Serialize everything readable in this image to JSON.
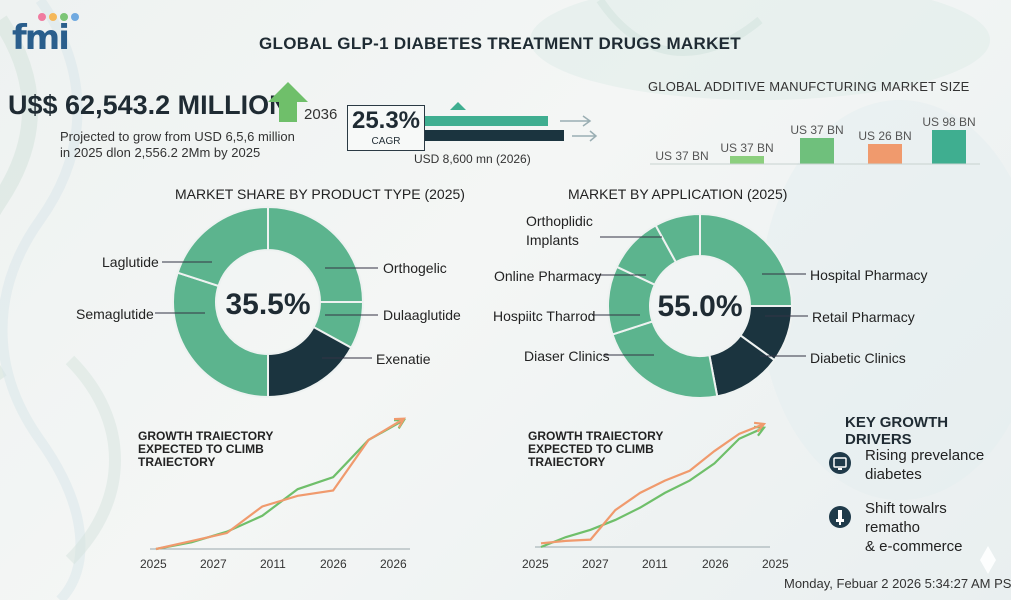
{
  "header": {
    "logo_text": "fmi",
    "title": "GLOBAL GLP-1 DIABETES TREATMENT DRUGS MARKET"
  },
  "headline": {
    "value": "U$$ 62,543.2 MILLION",
    "projection_line1": "Projected to grow from USD 6,5,6 million",
    "projection_line2": "in 2025 dlon 2,556.2 2Mm by 2025",
    "year": "2036",
    "cagr_value": "25.3%",
    "cagr_label": "CAGR",
    "usd_label": "USD 8,600 mn (2026)"
  },
  "colors": {
    "green": "#5cb48e",
    "dark": "#1b343f",
    "light_green": "#8ccf7e",
    "orange": "#f09a6d",
    "teal": "#3fae90",
    "arrow_green": "#6fbf6a"
  },
  "chart_data": [
    {
      "type": "bar",
      "title": "GLOBAL ADDITIVE MANUFCTURING MARKET SIZE",
      "categories": [
        "US 37 BN",
        "US 37 BN",
        "US 37 BN",
        "US 26 BN",
        "US 98 BN"
      ],
      "values": [
        0,
        8,
        26,
        20,
        34
      ],
      "colors": [
        "#8ccf7e",
        "#8ccf7e",
        "#6fc07c",
        "#f09a6d",
        "#3fae90"
      ]
    },
    {
      "type": "pie",
      "title": "MARKET SHARE BY PRODUCT TYPE (2025)",
      "center_label": "35.5%",
      "labels": [
        "Orthogelic",
        "Dulaaglutide",
        "Exenatie",
        "Semaglutide",
        "Laglutide"
      ],
      "values": [
        25,
        8,
        17,
        30,
        20
      ],
      "colors": [
        "#5cb48e",
        "#5cb48e",
        "#1b343f",
        "#5cb48e",
        "#5cb48e"
      ]
    },
    {
      "type": "pie",
      "title": "MARKET BY APPLICATION (2025)",
      "center_label": "55.0%",
      "labels": [
        "Hospital Pharmacy",
        "Retail Pharmacy",
        "Diabetic Clinics",
        "Diaser Clinics",
        "Hospiitc Tharrod",
        "Online Pharmacy",
        "Orthoplidic Implants"
      ],
      "values": [
        25,
        10,
        12,
        23,
        12,
        10,
        8
      ],
      "colors": [
        "#5cb48e",
        "#1b343f",
        "#1b343f",
        "#5cb48e",
        "#5cb48e",
        "#5cb48e",
        "#5cb48e"
      ]
    },
    {
      "type": "line",
      "title": "GROWTH TRAIECTORY EXPECTED TO CLIMB TRAIECTORY",
      "x_ticks": [
        "2025",
        "2027",
        "2011",
        "2026",
        "2026"
      ],
      "ylim": [
        0,
        100
      ],
      "series": [
        {
          "color": "#6fbf6a",
          "values": [
            0,
            5,
            13,
            25,
            45,
            54,
            82,
            97
          ]
        },
        {
          "color": "#f09a6d",
          "values": [
            0,
            6,
            12,
            32,
            40,
            44,
            82,
            98
          ]
        }
      ]
    },
    {
      "type": "line",
      "title": "GROWTH TRAIECTORY EXPECTED TO CLIMB TRAIECTORY",
      "x_ticks": [
        "2025",
        "2027",
        "2011",
        "2026",
        "2025"
      ],
      "ylim": [
        0,
        100
      ],
      "series": [
        {
          "color": "#6fbf6a",
          "values": [
            0,
            8,
            14,
            22,
            32,
            44,
            54,
            68,
            88,
            97
          ]
        },
        {
          "color": "#f09a6d",
          "values": [
            3,
            5,
            6,
            30,
            44,
            54,
            62,
            78,
            92,
            100
          ]
        }
      ]
    }
  ],
  "drivers": {
    "title": "KEY GROWTH DRIVERS",
    "item1_line1": "Rising prevelance",
    "item1_line2": "diabetes",
    "item2_line1": "Shift towalrs rematho",
    "item2_line2": "& e-commerce",
    "item1_icon": "monitor-icon",
    "item2_icon": "syringe-icon"
  },
  "footer": {
    "timestamp": "Monday, Febuar 2 2026 5:34:27 AM PS"
  }
}
